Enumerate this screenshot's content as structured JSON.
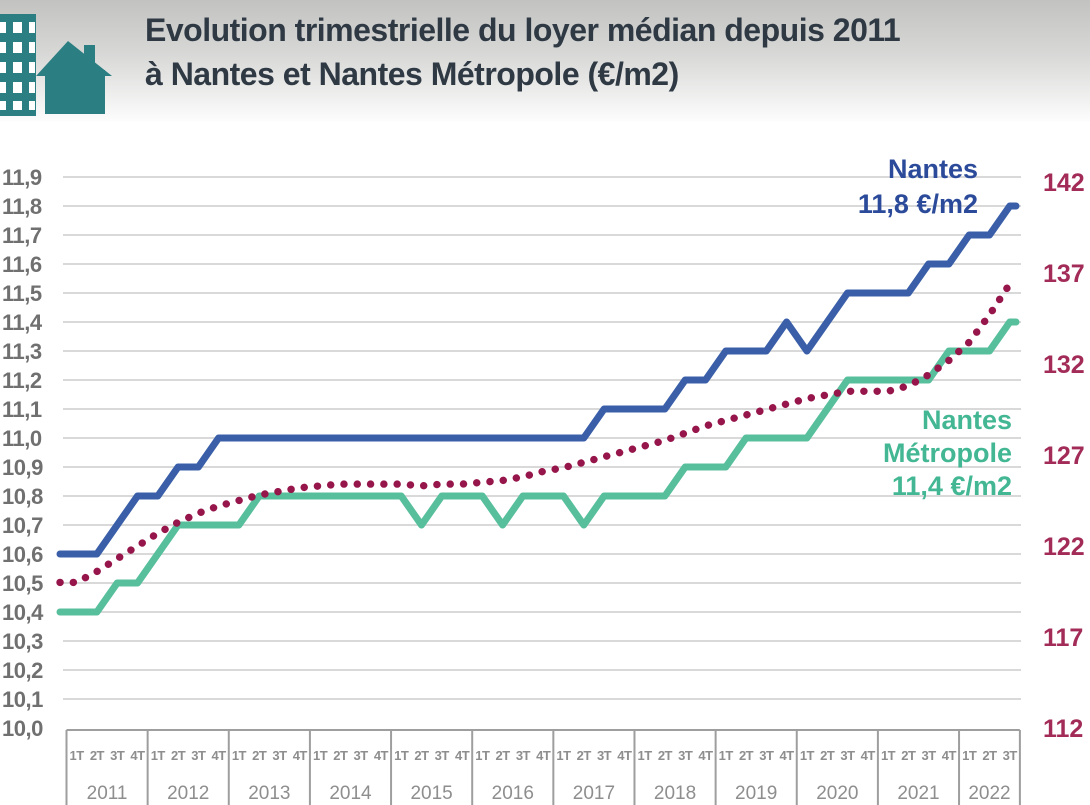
{
  "header": {
    "title_line1": "Evolution trimestrielle du loyer médian depuis 2011",
    "title_line2": "à Nantes et Nantes Métropole (€/m2)"
  },
  "annotations": {
    "nantes_name": "Nantes",
    "nantes_value": "11,8 €/m2",
    "metropole_name_line1": "Nantes",
    "metropole_name_line2": "Métropole",
    "metropole_value": "11,4 €/m2"
  },
  "colors": {
    "header_gradient_top": "#c2c2c1",
    "header_gradient_bottom": "#fdfdfd",
    "title_text": "#2e3944",
    "icon_teal": "#2b7e81",
    "nantes_line": "#3a5fa8",
    "nantes_label": "#2b4a9a",
    "metropole_line": "#58bf9c",
    "metropole_label": "#43b793",
    "dotted_line": "#96164b",
    "right_axis_text": "#a22b57",
    "left_axis_text": "#707070",
    "grid": "#d9d9d9",
    "axis_box": "#9e9e9e",
    "tick_text": "#8e8e8e"
  },
  "chart_data": {
    "type": "line",
    "title": "Evolution trimestrielle du loyer médian depuis 2011 à Nantes et Nantes Métropole (€/m2)",
    "left_axis": {
      "min": 10.0,
      "max": 11.9,
      "step": 0.1,
      "tick_labels": [
        "11,9",
        "11,8",
        "11,7",
        "11,6",
        "11,5",
        "11,4",
        "11,3",
        "11,2",
        "11,1",
        "11,0",
        "10,9",
        "10,8",
        "10,7",
        "10,6",
        "10,5",
        "10,4",
        "10,3",
        "10,2",
        "10,1",
        "10,0"
      ]
    },
    "right_axis": {
      "min": 112,
      "max": 142,
      "step": 5,
      "tick_labels": [
        "142",
        "137",
        "132",
        "127",
        "122",
        "117",
        "112"
      ]
    },
    "x": {
      "years": [
        {
          "label": "2011",
          "quarters": [
            "1T",
            "2T",
            "3T",
            "4T"
          ]
        },
        {
          "label": "2012",
          "quarters": [
            "1T",
            "2T",
            "3T",
            "4T"
          ]
        },
        {
          "label": "2013",
          "quarters": [
            "1T",
            "2T",
            "3T",
            "4T"
          ]
        },
        {
          "label": "2014",
          "quarters": [
            "1T",
            "2T",
            "3T",
            "4T"
          ]
        },
        {
          "label": "2015",
          "quarters": [
            "1T",
            "2T",
            "3T",
            "4T"
          ]
        },
        {
          "label": "2016",
          "quarters": [
            "1T",
            "2T",
            "3T",
            "4T"
          ]
        },
        {
          "label": "2017",
          "quarters": [
            "1T",
            "2T",
            "3T",
            "4T"
          ]
        },
        {
          "label": "2018",
          "quarters": [
            "1T",
            "2T",
            "3T",
            "4T"
          ]
        },
        {
          "label": "2019",
          "quarters": [
            "1T",
            "2T",
            "3T",
            "4T"
          ]
        },
        {
          "label": "2020",
          "quarters": [
            "1T",
            "2T",
            "3T",
            "4T"
          ]
        },
        {
          "label": "2021",
          "quarters": [
            "1T",
            "2T",
            "3T",
            "4T"
          ]
        },
        {
          "label": "2022",
          "quarters": [
            "1T",
            "2T",
            "3T"
          ]
        }
      ]
    },
    "series": [
      {
        "name": "Nantes Métropole",
        "axis": "left",
        "style": "solid",
        "color_key": "metropole_line",
        "end_label": "11,4 €/m2",
        "values": [
          10.4,
          10.4,
          10.5,
          10.5,
          10.6,
          10.7,
          10.7,
          10.7,
          10.7,
          10.8,
          10.8,
          10.8,
          10.8,
          10.8,
          10.8,
          10.8,
          10.8,
          10.7,
          10.8,
          10.8,
          10.8,
          10.7,
          10.8,
          10.8,
          10.8,
          10.7,
          10.8,
          10.8,
          10.8,
          10.8,
          10.9,
          10.9,
          10.9,
          11.0,
          11.0,
          11.0,
          11.0,
          11.1,
          11.2,
          11.2,
          11.2,
          11.2,
          11.2,
          11.3,
          11.3,
          11.3,
          11.4
        ]
      },
      {
        "name": "",
        "axis": "right",
        "style": "dotted",
        "color_key": "dotted_line",
        "end_label": "",
        "values": [
          120.0,
          120.6,
          121.3,
          122.0,
          122.7,
          123.3,
          123.8,
          124.2,
          124.5,
          124.8,
          125.0,
          125.2,
          125.3,
          125.4,
          125.4,
          125.4,
          125.4,
          125.3,
          125.4,
          125.4,
          125.5,
          125.6,
          125.8,
          126.1,
          126.3,
          126.6,
          126.9,
          127.2,
          127.5,
          127.8,
          128.2,
          128.6,
          128.9,
          129.2,
          129.5,
          129.8,
          130.1,
          130.3,
          130.5,
          130.5,
          130.5,
          130.8,
          131.4,
          132.2,
          133.2,
          134.7,
          136.4
        ]
      },
      {
        "name": "Nantes",
        "axis": "left",
        "style": "solid",
        "color_key": "nantes_line",
        "end_label": "11,8 €/m2",
        "values": [
          10.6,
          10.6,
          10.7,
          10.8,
          10.8,
          10.9,
          10.9,
          11.0,
          11.0,
          11.0,
          11.0,
          11.0,
          11.0,
          11.0,
          11.0,
          11.0,
          11.0,
          11.0,
          11.0,
          11.0,
          11.0,
          11.0,
          11.0,
          11.0,
          11.0,
          11.0,
          11.1,
          11.1,
          11.1,
          11.1,
          11.2,
          11.2,
          11.3,
          11.3,
          11.3,
          11.4,
          11.3,
          11.4,
          11.5,
          11.5,
          11.5,
          11.5,
          11.6,
          11.6,
          11.7,
          11.7,
          11.8
        ]
      }
    ]
  }
}
